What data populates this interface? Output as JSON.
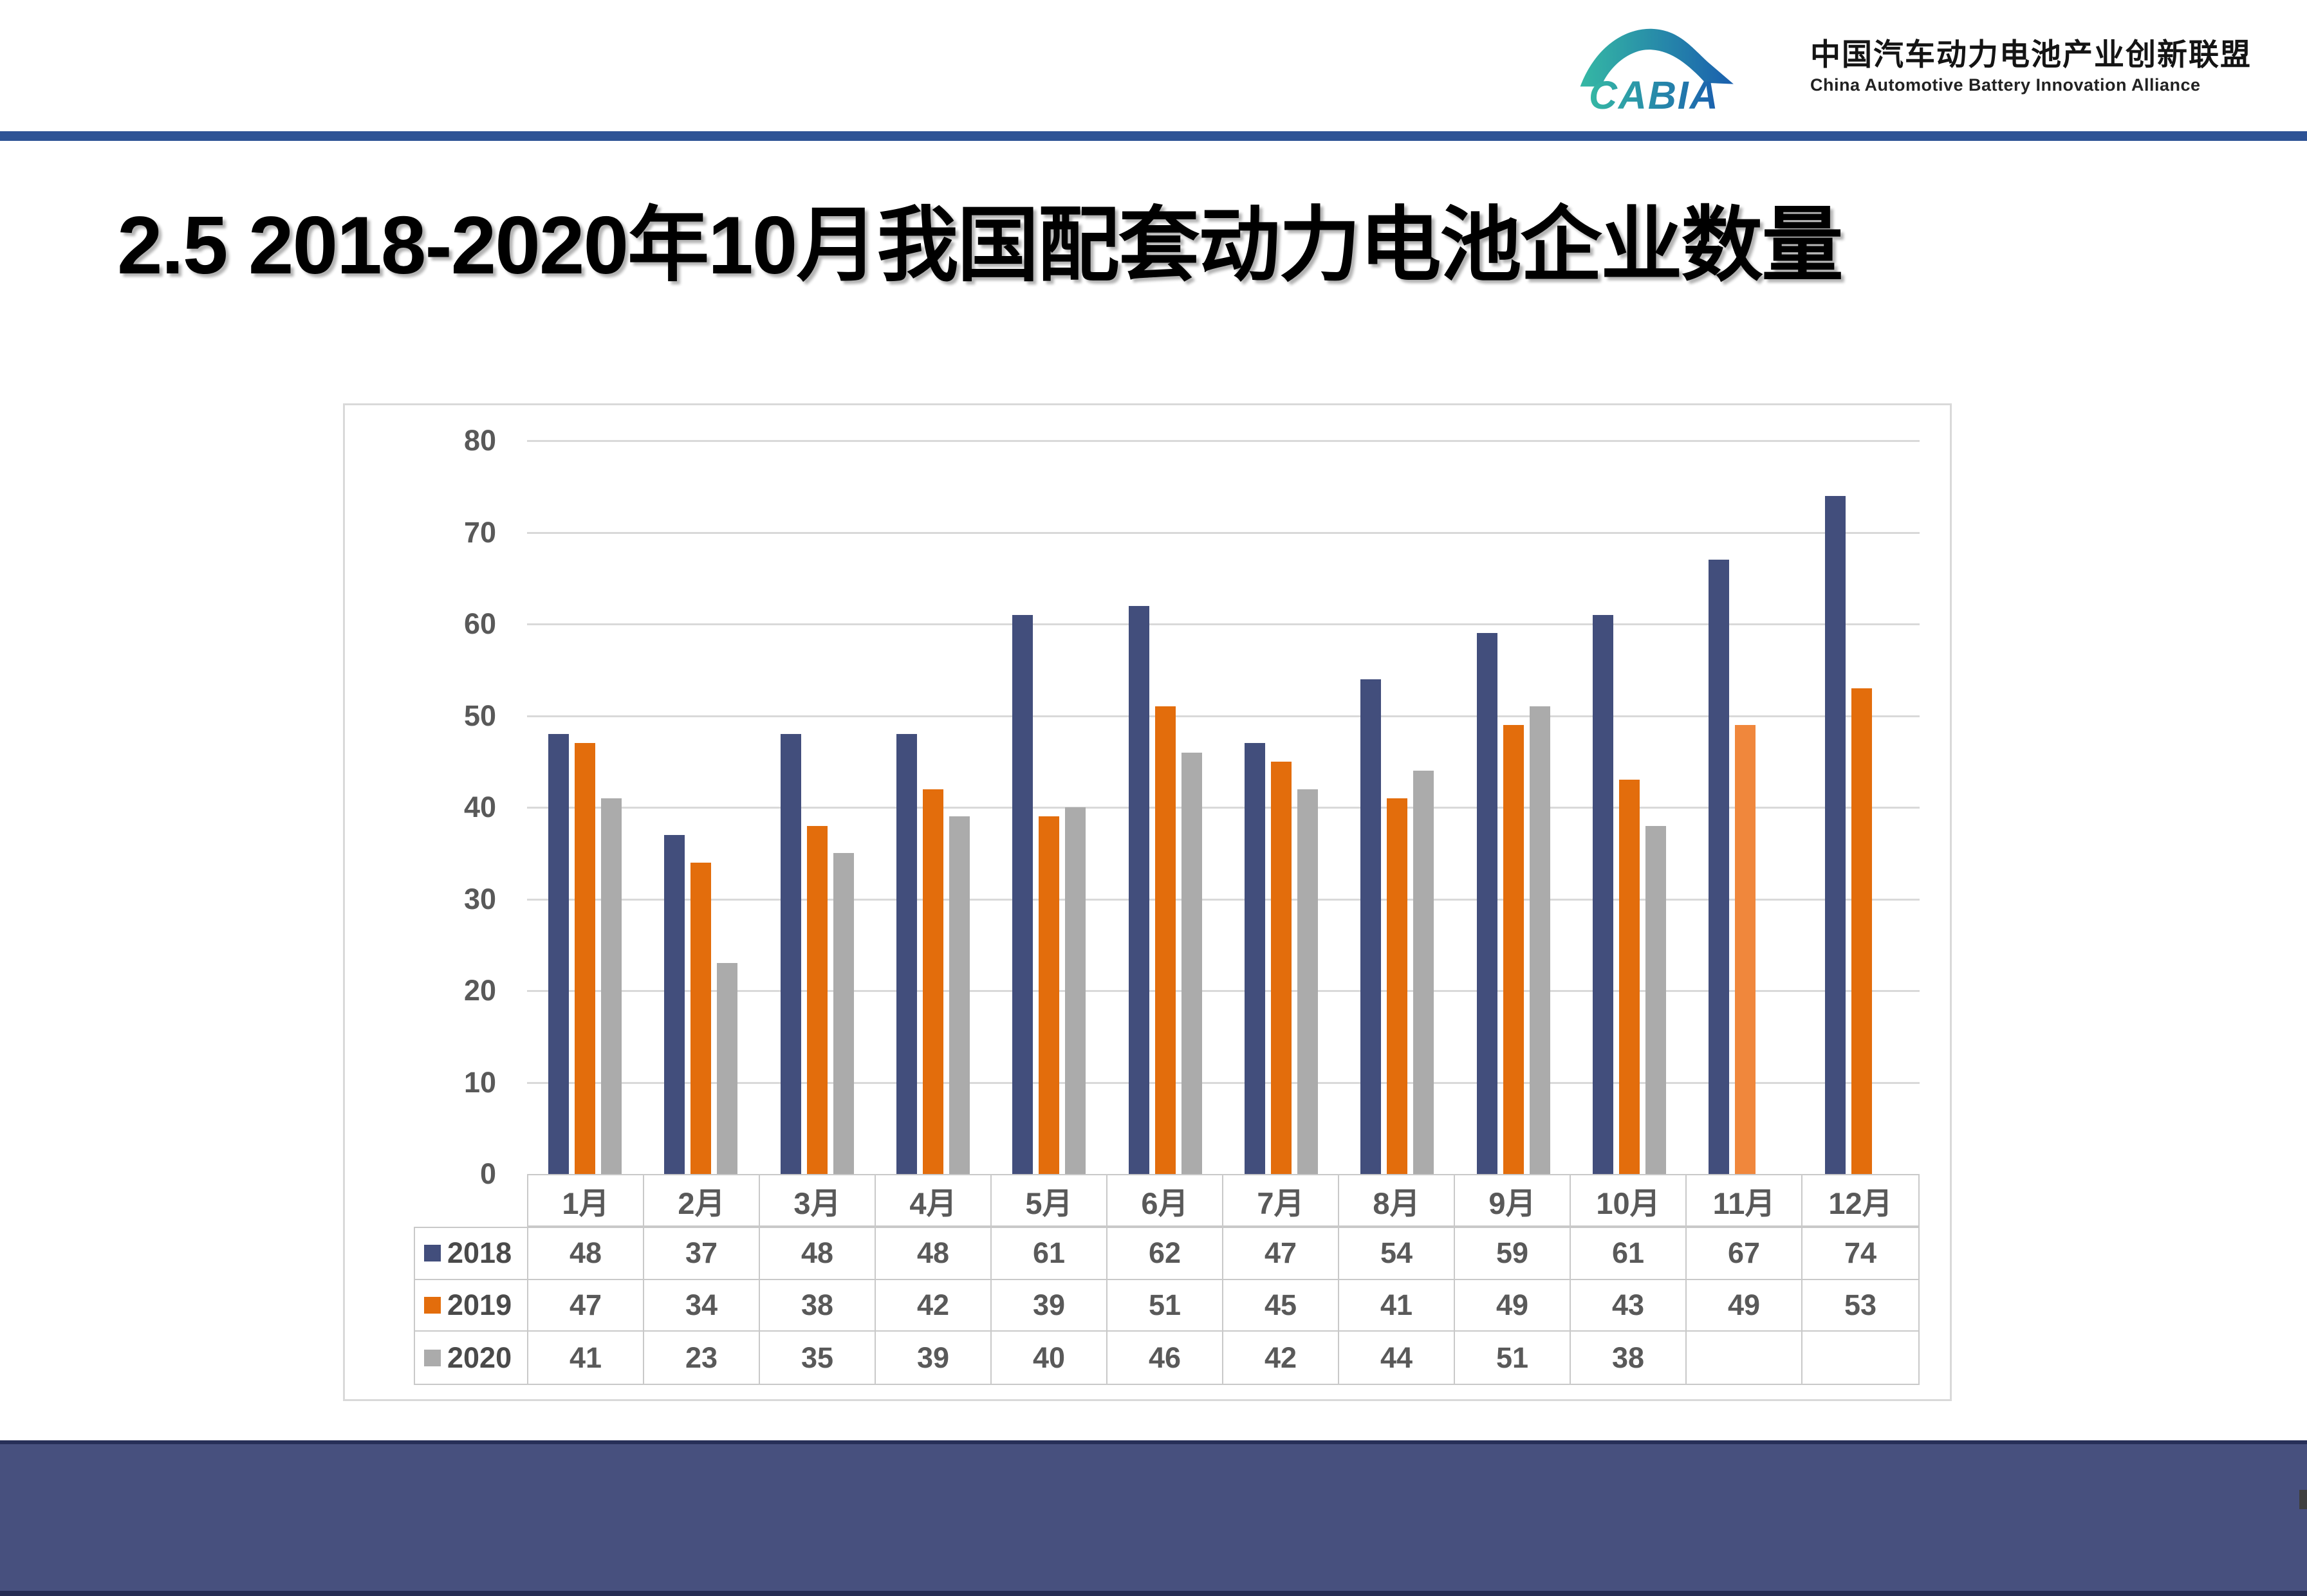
{
  "page": {
    "title": "2.5 2018-2020年10月我国配套动力电池企业数量"
  },
  "logo": {
    "brand": "CABIA",
    "name_cn": "中国汽车动力电池产业创新联盟",
    "name_en": "China Automotive Battery Innovation Alliance"
  },
  "colors": {
    "header_rule": "#2E5395",
    "footer_band": "#47507E",
    "grid": "#D9D9D9",
    "axis_text": "#595959",
    "series_2018": "#424E7C",
    "series_2019": "#E36D0C",
    "series_2019_nov_highlight": "#F0873C",
    "series_2020": "#ABABAB"
  },
  "chart_data": {
    "type": "bar",
    "title": "",
    "xlabel": "",
    "ylabel": "",
    "categories": [
      "1月",
      "2月",
      "3月",
      "4月",
      "5月",
      "6月",
      "7月",
      "8月",
      "9月",
      "10月",
      "11月",
      "12月"
    ],
    "series": [
      {
        "name": "2018",
        "color": "#424E7C",
        "values": [
          48,
          37,
          48,
          48,
          61,
          62,
          47,
          54,
          59,
          61,
          67,
          74
        ]
      },
      {
        "name": "2019",
        "color": "#E36D0C",
        "values": [
          47,
          34,
          38,
          42,
          39,
          51,
          45,
          41,
          49,
          43,
          49,
          53
        ]
      },
      {
        "name": "2020",
        "color": "#ABABAB",
        "values": [
          41,
          23,
          35,
          39,
          40,
          46,
          42,
          44,
          51,
          38,
          null,
          null
        ]
      }
    ],
    "bar_color_overrides": [
      {
        "series": "2019",
        "category": "11月",
        "color": "#F0873C"
      }
    ],
    "ylim": [
      0,
      80
    ],
    "yticks": [
      0,
      10,
      20,
      30,
      40,
      50,
      60,
      70,
      80
    ],
    "grid": true,
    "legend_position": "table-rows-left",
    "data_table_shown": true
  }
}
